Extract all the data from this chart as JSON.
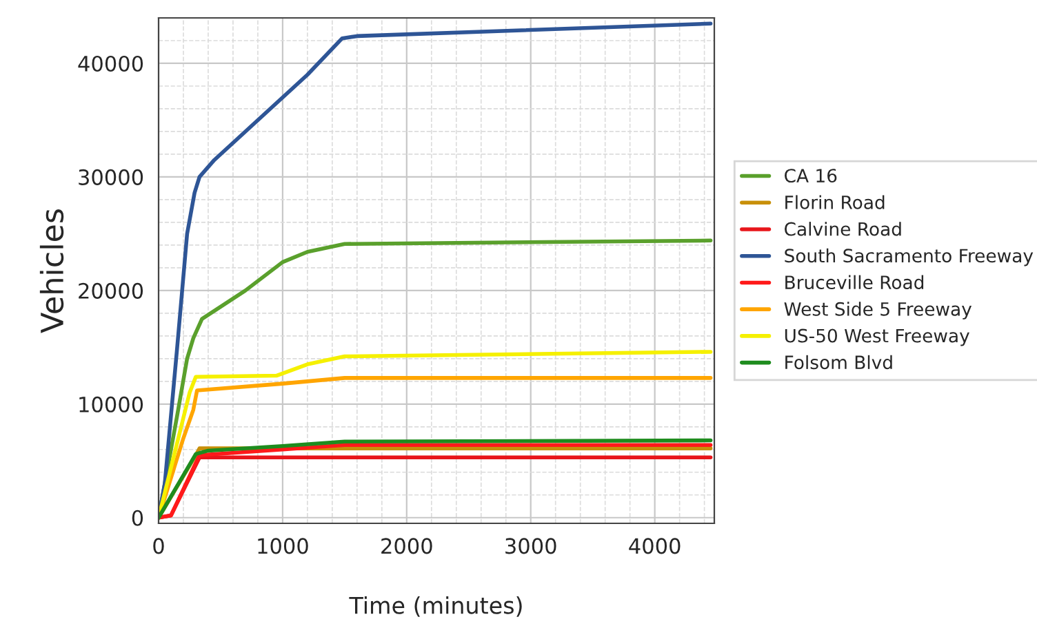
{
  "chart_data": {
    "type": "line",
    "xlabel": "Time (minutes)",
    "ylabel": "Vehicles",
    "xlim": [
      0,
      4480
    ],
    "ylim": [
      -500,
      44000
    ],
    "xticks": [
      0,
      1000,
      2000,
      3000,
      4000
    ],
    "yticks": [
      0,
      10000,
      20000,
      30000,
      40000
    ],
    "grid": true,
    "legend": "right",
    "marker": "none",
    "line_style": "solid",
    "series": [
      {
        "name": "CA 16",
        "color": "#5aa02c",
        "x": [
          0,
          150,
          230,
          280,
          350,
          700,
          1000,
          1200,
          1500,
          4450
        ],
        "values": [
          0,
          9000,
          14000,
          15800,
          17500,
          20000,
          22500,
          23400,
          24100,
          24400
        ]
      },
      {
        "name": "Florin Road",
        "color": "#c8900a",
        "x": [
          0,
          300,
          330,
          4450
        ],
        "values": [
          0,
          5500,
          6100,
          6100
        ]
      },
      {
        "name": "Calvine Road",
        "color": "#e8161b",
        "x": [
          0,
          100,
          330,
          4450
        ],
        "values": [
          0,
          200,
          5300,
          5300
        ]
      },
      {
        "name": "South Sacramento Freeway",
        "color": "#2e5596",
        "x": [
          0,
          50,
          150,
          230,
          290,
          330,
          450,
          700,
          1000,
          1200,
          1480,
          1600,
          4450
        ],
        "values": [
          0,
          3000,
          15000,
          25000,
          28600,
          30000,
          31500,
          34000,
          37000,
          39000,
          42200,
          42400,
          43500
        ]
      },
      {
        "name": "Bruceville Road",
        "color": "#ff1a1a",
        "x": [
          0,
          100,
          330,
          1000,
          1500,
          4450
        ],
        "values": [
          0,
          200,
          5500,
          6000,
          6400,
          6400
        ]
      },
      {
        "name": "West Side 5 Freeway",
        "color": "#ffa500",
        "x": [
          0,
          200,
          280,
          310,
          1000,
          1500,
          4450
        ],
        "values": [
          0,
          7000,
          9500,
          11200,
          11800,
          12300,
          12300
        ]
      },
      {
        "name": "US-50 West Freeway",
        "color": "#f5f000",
        "x": [
          0,
          250,
          300,
          950,
          1200,
          1500,
          4450
        ],
        "values": [
          0,
          11000,
          12400,
          12500,
          13500,
          14200,
          14600
        ]
      },
      {
        "name": "Folsom Blvd",
        "color": "#1e8c1e",
        "x": [
          0,
          300,
          400,
          1000,
          1500,
          4450
        ],
        "values": [
          0,
          5600,
          5900,
          6300,
          6700,
          6800
        ]
      }
    ]
  }
}
